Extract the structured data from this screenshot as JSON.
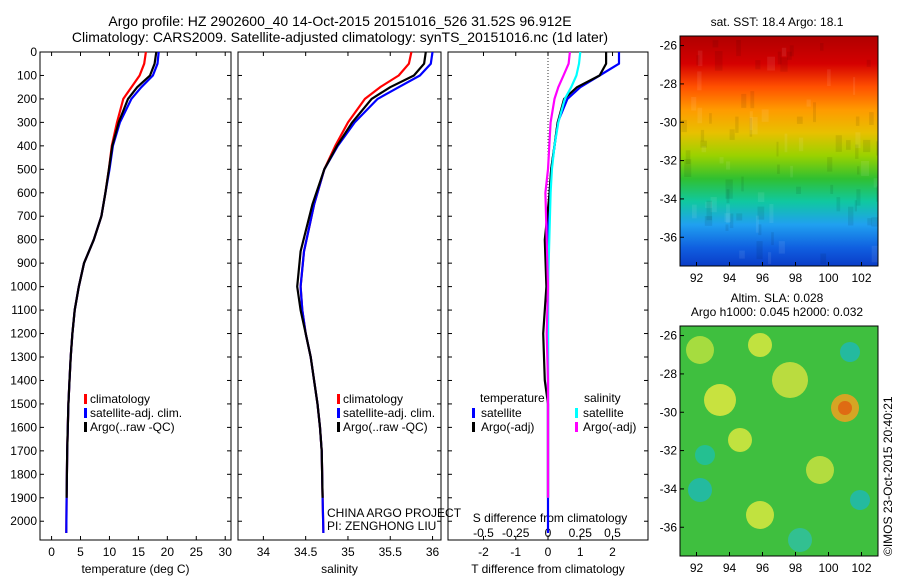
{
  "header": {
    "line1": "Argo profile: HZ 2902600_40 14-Oct-2015 20151016_526 31.52S 96.912E",
    "line2": "Climatology: CARS2009. Satellite-adjusted climatology: synTS_20151016.nc (1d later)"
  },
  "colors": {
    "climatology": "#ff0000",
    "satellite": "#0000ff",
    "argo": "#000000",
    "salinity_sat": "#00ffff",
    "salinity_argo": "#ff00ff"
  },
  "chart_data": [
    {
      "type": "line",
      "id": "temperature",
      "xlabel": "temperature (deg C)",
      "xlim": [
        -2,
        31
      ],
      "ylim": [
        2080,
        0
      ],
      "xticks": [
        0,
        5,
        10,
        15,
        20,
        25,
        30
      ],
      "yticks": [
        0,
        100,
        200,
        300,
        400,
        500,
        600,
        700,
        800,
        900,
        1000,
        1100,
        1200,
        1300,
        1400,
        1500,
        1600,
        1700,
        1800,
        1900,
        2000
      ],
      "legend": [
        "climatology",
        "satellite-adj. clim.",
        "Argo(..raw -QC)"
      ],
      "series": [
        {
          "name": "climatology",
          "color": "#ff0000",
          "x": [
            16.3,
            16.0,
            15.2,
            13.8,
            12.4,
            11.3,
            10.4,
            9.9,
            9.3,
            8.6,
            7.3,
            5.6,
            4.7,
            4.0,
            3.6,
            3.3,
            3.1,
            2.9,
            2.8,
            2.7,
            2.6,
            2.55
          ],
          "y": [
            0,
            50,
            100,
            150,
            200,
            300,
            400,
            500,
            600,
            700,
            800,
            900,
            1000,
            1100,
            1200,
            1300,
            1400,
            1500,
            1600,
            1700,
            1900,
            2050
          ]
        },
        {
          "name": "satellite-adj. clim.",
          "color": "#0000ff",
          "x": [
            18.5,
            18.3,
            17.5,
            15.5,
            13.8,
            11.8,
            10.6,
            10.0,
            9.3,
            8.6,
            7.3,
            5.6,
            4.7,
            4.0,
            3.6,
            3.3,
            3.1,
            2.9,
            2.8,
            2.7,
            2.6,
            2.55
          ],
          "y": [
            0,
            50,
            100,
            150,
            200,
            300,
            400,
            500,
            600,
            700,
            800,
            900,
            1000,
            1100,
            1200,
            1300,
            1400,
            1500,
            1600,
            1700,
            1900,
            2050
          ]
        },
        {
          "name": "Argo(..raw -QC)",
          "color": "#000000",
          "x": [
            18.1,
            17.8,
            17.0,
            14.8,
            13.2,
            11.6,
            10.5,
            9.9,
            9.3,
            8.6,
            7.3,
            5.6,
            4.7,
            4.0,
            3.6,
            3.3,
            3.1,
            2.9,
            2.8,
            2.7,
            2.6
          ],
          "y": [
            0,
            50,
            100,
            150,
            200,
            300,
            400,
            500,
            600,
            700,
            800,
            900,
            1000,
            1100,
            1200,
            1300,
            1400,
            1500,
            1600,
            1700,
            1900
          ]
        }
      ]
    },
    {
      "type": "line",
      "id": "salinity",
      "xlabel": "salinity",
      "xlim": [
        33.7,
        36.1
      ],
      "ylim": [
        2080,
        0
      ],
      "xticks": [
        34,
        34.5,
        35,
        35.5,
        36
      ],
      "xtick_labels": [
        "34",
        "34.5",
        "35",
        "35.5",
        "36"
      ],
      "legend": [
        "climatology",
        "satellite-adj. clim.",
        "Argo(..raw -QC)"
      ],
      "credits": [
        "CHINA ARGO PROJECT",
        "PI: ZENGHONG LIU"
      ],
      "series": [
        {
          "name": "climatology",
          "color": "#ff0000",
          "x": [
            35.75,
            35.72,
            35.6,
            35.38,
            35.2,
            35.0,
            34.85,
            34.72,
            34.6,
            34.48,
            34.44,
            34.46,
            34.5,
            34.56,
            34.6,
            34.64,
            34.67,
            34.69,
            34.7,
            34.71
          ],
          "y": [
            0,
            50,
            100,
            150,
            200,
            300,
            400,
            500,
            650,
            850,
            1000,
            1100,
            1200,
            1300,
            1400,
            1500,
            1600,
            1700,
            1900,
            2050
          ]
        },
        {
          "name": "satellite-adj. clim.",
          "color": "#0000ff",
          "x": [
            36.0,
            35.98,
            35.85,
            35.6,
            35.35,
            35.08,
            34.88,
            34.72,
            34.6,
            34.48,
            34.44,
            34.46,
            34.5,
            34.56,
            34.6,
            34.64,
            34.67,
            34.69,
            34.7,
            34.71
          ],
          "y": [
            0,
            50,
            100,
            150,
            200,
            300,
            400,
            500,
            650,
            850,
            1000,
            1100,
            1200,
            1300,
            1400,
            1500,
            1600,
            1700,
            1900,
            2050
          ]
        },
        {
          "name": "Argo(..raw -QC)",
          "color": "#000000",
          "x": [
            35.92,
            35.9,
            35.78,
            35.5,
            35.28,
            35.05,
            34.87,
            34.72,
            34.58,
            34.44,
            34.4,
            34.44,
            34.5,
            34.56,
            34.6,
            34.64,
            34.67,
            34.69,
            34.7
          ],
          "y": [
            0,
            50,
            100,
            150,
            200,
            300,
            400,
            500,
            650,
            850,
            1000,
            1100,
            1200,
            1300,
            1400,
            1500,
            1600,
            1700,
            1900
          ]
        }
      ]
    },
    {
      "type": "line",
      "id": "difference",
      "xlabel": "T difference from climatology",
      "top_xlabel": "S difference from climatology",
      "xlim": [
        -3.1,
        3.1
      ],
      "ylim": [
        2080,
        0
      ],
      "xticks": [
        -2,
        -1,
        0,
        1,
        2
      ],
      "top_xticks": [
        -0.5,
        -0.25,
        0,
        0.25,
        0.5
      ],
      "top_xtick_labels": [
        "-0.5",
        "-0.25",
        "0",
        "0.25",
        "0.5"
      ],
      "legend_titles": [
        "temperature",
        "salinity"
      ],
      "legend": [
        "satellite",
        "Argo(-adj)",
        "satellite",
        "Argo(-adj)"
      ],
      "series": [
        {
          "name": "satellite",
          "color": "#0000ff",
          "x": [
            2.2,
            2.2,
            1.6,
            1.0,
            0.6,
            0.3,
            0.2,
            0.1,
            0.05,
            0,
            0,
            0,
            0,
            0,
            0,
            0,
            0,
            0
          ],
          "y": [
            0,
            50,
            100,
            150,
            200,
            300,
            400,
            500,
            600,
            800,
            1000,
            1200,
            1400,
            1500,
            1600,
            1700,
            1900,
            2050
          ]
        },
        {
          "name": "Argo(-adj)",
          "color": "#000000",
          "x": [
            1.8,
            1.8,
            1.6,
            0.9,
            0.5,
            0.3,
            0.2,
            0.1,
            0.05,
            -0.1,
            -0.05,
            -0.15,
            -0.1,
            0,
            0,
            0,
            0
          ],
          "y": [
            0,
            50,
            100,
            150,
            200,
            300,
            400,
            500,
            600,
            800,
            1000,
            1200,
            1400,
            1500,
            1600,
            1700,
            1900
          ]
        },
        {
          "name": "satellite",
          "color": "#00ffff",
          "x": [
            0.25,
            0.24,
            0.22,
            0.18,
            0.13,
            0.08,
            0.05,
            0.03,
            0.02,
            0.01,
            0,
            0,
            0,
            0,
            0,
            0,
            0
          ],
          "y": [
            0,
            50,
            100,
            150,
            200,
            300,
            400,
            500,
            600,
            800,
            1000,
            1200,
            1400,
            1500,
            1600,
            1700,
            1900
          ]
        },
        {
          "name": "Argo(-adj)",
          "color": "#ff00ff",
          "x": [
            0.17,
            0.16,
            0.12,
            0.08,
            0.05,
            0.02,
            0.01,
            0,
            -0.02,
            -0.01,
            0,
            -0.01,
            0,
            0,
            0,
            0
          ],
          "y": [
            0,
            50,
            100,
            150,
            200,
            300,
            400,
            500,
            600,
            800,
            1000,
            1200,
            1400,
            1600,
            1700,
            1900
          ]
        }
      ]
    },
    {
      "type": "heatmap",
      "id": "sst-map",
      "title": "sat. SST: 18.4 Argo: 18.1",
      "xlim": [
        91,
        103
      ],
      "ylim": [
        -37.5,
        -25.5
      ],
      "xticks": [
        92,
        94,
        96,
        98,
        100,
        102
      ],
      "yticks": [
        -26,
        -28,
        -30,
        -32,
        -34,
        -36
      ],
      "profile_position": [
        96.912,
        -31.52
      ]
    },
    {
      "type": "heatmap",
      "id": "sla-map",
      "title_lines": [
        "Altim. SLA: 0.028",
        "Argo h1000: 0.045 h2000: 0.032"
      ],
      "xlim": [
        91,
        103
      ],
      "ylim": [
        -37.5,
        -25.5
      ],
      "xticks": [
        92,
        94,
        96,
        98,
        100,
        102
      ],
      "yticks": [
        -26,
        -28,
        -30,
        -32,
        -34,
        -36
      ],
      "watermark": "©IMOS 23-Oct-2015 20:40:21"
    }
  ]
}
